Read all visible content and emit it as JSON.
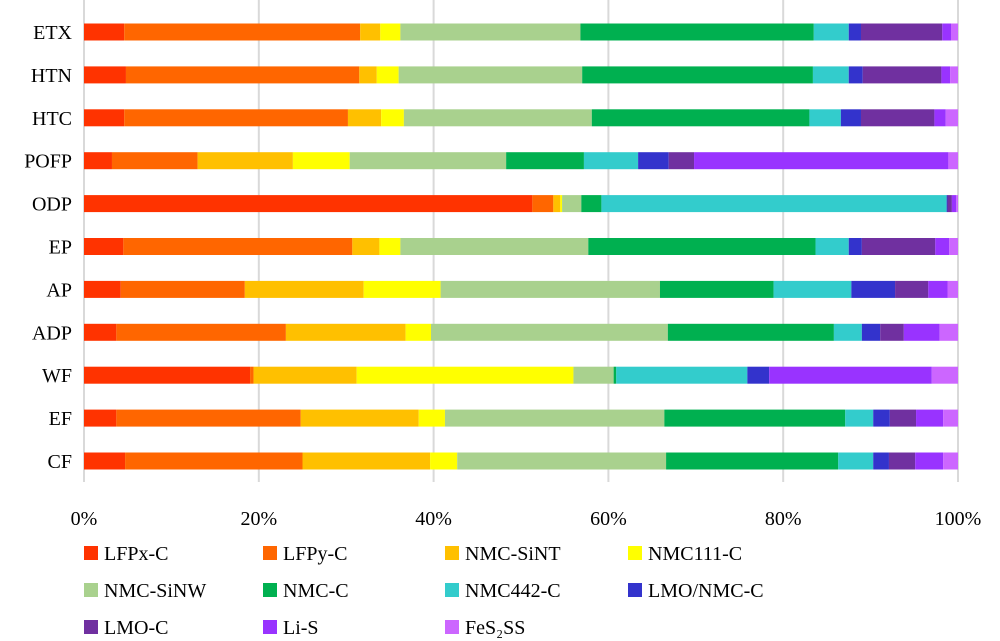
{
  "chart_data": {
    "type": "bar",
    "orientation": "horizontal",
    "stacked": "percent",
    "title": "",
    "xlabel": "",
    "ylabel": "",
    "xlim": [
      0,
      100
    ],
    "x_ticks": [
      "0%",
      "20%",
      "40%",
      "60%",
      "80%",
      "100%"
    ],
    "grid": "vertical",
    "legend_position": "bottom",
    "categories": [
      "ETX",
      "HTN",
      "HTC",
      "POFP",
      "ODP",
      "EP",
      "AP",
      "ADP",
      "WF",
      "EF",
      "CF"
    ],
    "series": [
      {
        "name": "LFPx-C",
        "color": "#FF3300",
        "values": [
          4.6,
          4.8,
          4.6,
          3.2,
          51.3,
          4.5,
          4.2,
          3.7,
          19.0,
          3.7,
          4.7
        ]
      },
      {
        "name": "LFPy-C",
        "color": "#FF6600",
        "values": [
          27.0,
          26.7,
          25.6,
          9.8,
          2.4,
          26.2,
          14.2,
          19.4,
          0.4,
          21.1,
          20.3
        ]
      },
      {
        "name": "NMC-SiNT",
        "color": "#FFC000",
        "values": [
          2.3,
          2.0,
          3.8,
          10.9,
          0.8,
          3.1,
          13.6,
          13.7,
          11.8,
          13.5,
          14.6
        ]
      },
      {
        "name": "NMC111-C",
        "color": "#FFFF00",
        "values": [
          2.3,
          2.5,
          2.6,
          6.5,
          0.2,
          2.4,
          8.8,
          2.9,
          24.8,
          3.0,
          3.1
        ]
      },
      {
        "name": "NMC-SiNW",
        "color": "#A9D18E",
        "values": [
          20.6,
          21.0,
          21.5,
          17.9,
          2.2,
          21.5,
          25.1,
          27.1,
          4.6,
          25.1,
          23.9
        ]
      },
      {
        "name": "NMC-C",
        "color": "#00B050",
        "values": [
          26.7,
          26.4,
          24.9,
          8.9,
          2.3,
          26.0,
          13.0,
          19.0,
          0.3,
          20.7,
          19.7
        ]
      },
      {
        "name": "NMC442-C",
        "color": "#33CCCC",
        "values": [
          4.0,
          4.1,
          3.6,
          6.2,
          39.5,
          3.8,
          8.9,
          3.2,
          15.0,
          3.2,
          4.0
        ]
      },
      {
        "name": "LMO/NMC-C",
        "color": "#3333CC",
        "values": [
          1.4,
          1.6,
          2.3,
          3.5,
          0.1,
          1.5,
          5.0,
          2.1,
          2.5,
          1.9,
          1.8
        ]
      },
      {
        "name": "LMO-C",
        "color": "#7030A0",
        "values": [
          9.3,
          9.0,
          8.4,
          2.9,
          0.5,
          8.4,
          3.8,
          2.7,
          0.0,
          3.0,
          3.0
        ]
      },
      {
        "name": "Li-S",
        "color": "#9933FF",
        "values": [
          1.0,
          1.0,
          1.3,
          29.1,
          0.5,
          1.6,
          2.2,
          4.1,
          18.6,
          3.1,
          3.2
        ]
      },
      {
        "name": "FeS₂SS",
        "color": "#CC66FF",
        "values": [
          0.8,
          0.9,
          1.4,
          1.1,
          0.2,
          1.0,
          1.2,
          2.1,
          3.0,
          1.7,
          1.7
        ]
      }
    ]
  }
}
